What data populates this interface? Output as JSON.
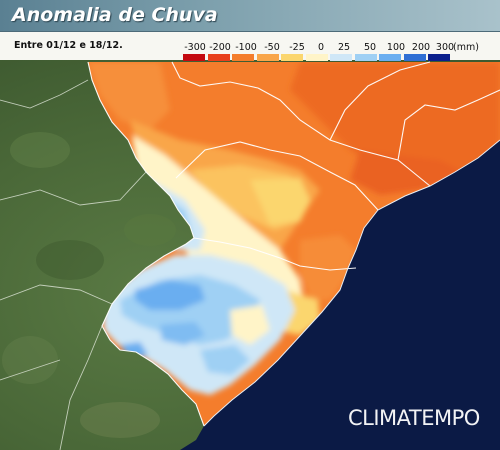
{
  "header": {
    "title": "Anomalia de Chuva",
    "period": "Entre 01/12 e 18/12."
  },
  "legend": {
    "unit": "(mm)",
    "labels": [
      "-300",
      "-200",
      "-100",
      "-50",
      "-25",
      "0",
      "25",
      "50",
      "100",
      "200",
      "300"
    ],
    "colors": [
      "#c40a10",
      "#e8401c",
      "#f47d2c",
      "#f9a64a",
      "#fbd66e",
      "#fff4c8",
      "#cfe7f7",
      "#9fd0f4",
      "#6aaef0",
      "#2f6fd4",
      "#0b1f8c"
    ]
  },
  "map": {
    "ocean_color": "#0b1a45",
    "land_color": "#4d6b3c",
    "boundary_color": "#ffffff"
  },
  "logo": {
    "text": "CLIMATEMPO"
  }
}
